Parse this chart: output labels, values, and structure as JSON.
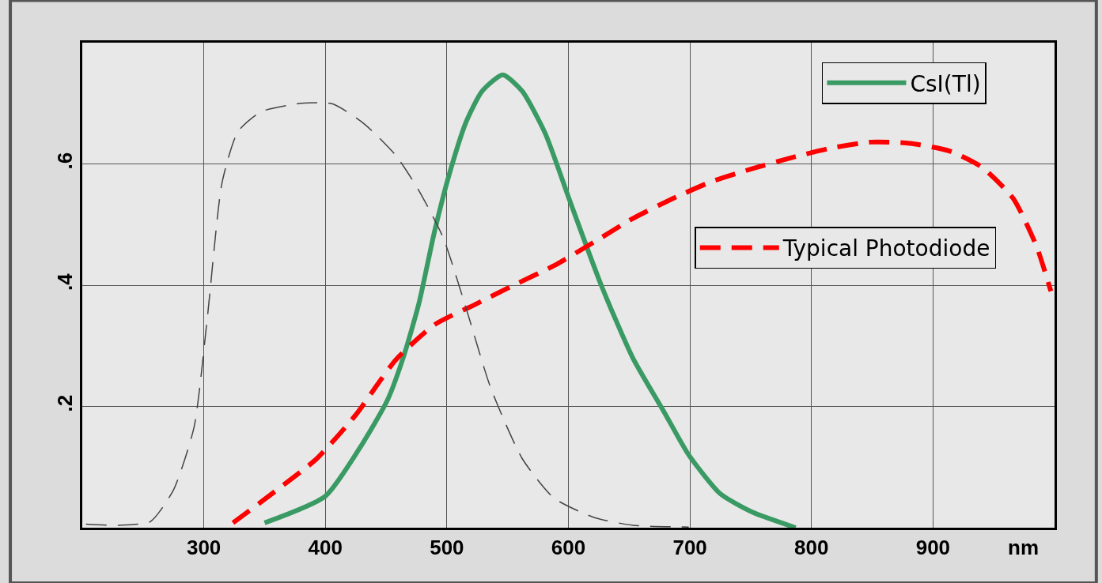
{
  "chart_data": {
    "type": "line",
    "xlabel": "nm",
    "xlim": [
      200,
      1000
    ],
    "ylim": [
      0,
      0.8
    ],
    "xticks": [
      300,
      400,
      500,
      600,
      700,
      800,
      900
    ],
    "yticks": [
      {
        "value": 0.2,
        "label": ".2"
      },
      {
        "value": 0.4,
        "label": ".4"
      },
      {
        "value": 0.6,
        "label": ".6"
      }
    ],
    "grid": true,
    "legend": "top right",
    "series": [
      {
        "name": "CsI(Tl)",
        "color": "#3a9a64",
        "line_style": "solid",
        "x": [
          350,
          400,
          431,
          451,
          464,
          477,
          490,
          503,
          516,
          529,
          546,
          562,
          581,
          601,
          627,
          653,
          679,
          699,
          725,
          751,
          787
        ],
        "values": [
          0.008,
          0.052,
          0.14,
          0.21,
          0.28,
          0.37,
          0.49,
          0.59,
          0.67,
          0.72,
          0.747,
          0.72,
          0.65,
          0.54,
          0.4,
          0.28,
          0.19,
          0.12,
          0.056,
          0.026,
          0
        ]
      },
      {
        "name": "Typical Photodiode",
        "color": "#ff0000",
        "line_style": "dashed",
        "x": [
          324,
          360,
          393,
          425,
          458,
          490,
          523,
          555,
          588,
          621,
          653,
          686,
          718,
          751,
          783,
          816,
          849,
          881,
          914,
          940,
          966,
          985,
          997
        ],
        "values": [
          0.008,
          0.062,
          0.114,
          0.186,
          0.277,
          0.335,
          0.368,
          0.4,
          0.432,
          0.471,
          0.51,
          0.543,
          0.571,
          0.592,
          0.61,
          0.626,
          0.636,
          0.634,
          0.621,
          0.595,
          0.543,
          0.465,
          0.39
        ]
      },
      {
        "color": "#444444",
        "line_style": "dashed",
        "x": [
          203,
          230,
          256,
          275,
          292,
          303,
          315,
          328,
          347,
          380,
          406,
          432,
          458,
          477,
          497,
          516,
          536,
          562,
          588,
          621,
          653,
          699
        ],
        "values": [
          0.006,
          0.004,
          0.01,
          0.062,
          0.166,
          0.348,
          0.569,
          0.653,
          0.686,
          0.7,
          0.699,
          0.666,
          0.614,
          0.556,
          0.478,
          0.361,
          0.231,
          0.114,
          0.049,
          0.017,
          0.004,
          0.001
        ]
      }
    ]
  }
}
